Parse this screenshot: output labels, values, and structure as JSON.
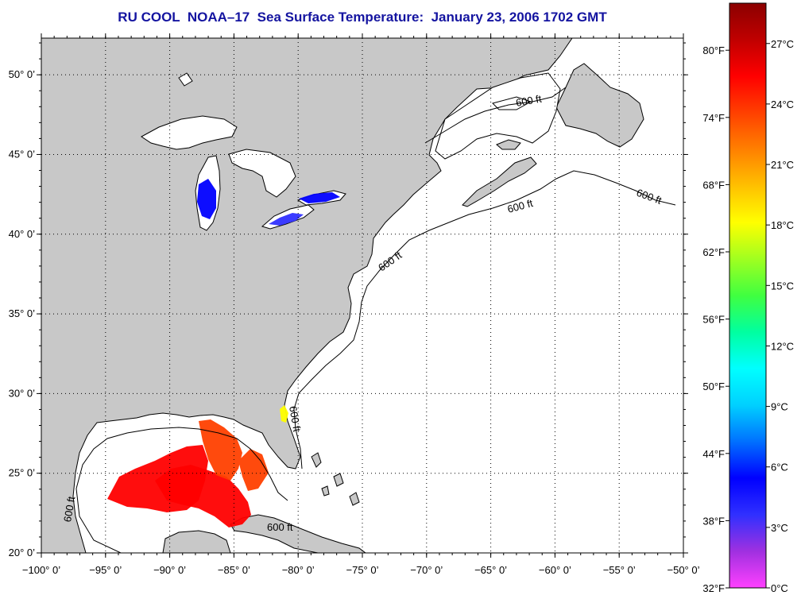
{
  "title": "RU COOL  NOAA–17  Sea Surface Temperature:  January 23, 2006 1702 GMT",
  "map": {
    "lon_range": [
      -100,
      -50
    ],
    "lat_range": [
      20,
      52.3
    ],
    "lon_ticks": [
      {
        "value": -100,
        "label": "−100° 0’"
      },
      {
        "value": -95,
        "label": "−95° 0’"
      },
      {
        "value": -90,
        "label": "−90° 0’"
      },
      {
        "value": -85,
        "label": "−85° 0’"
      },
      {
        "value": -80,
        "label": "−80° 0’"
      },
      {
        "value": -75,
        "label": "−75° 0’"
      },
      {
        "value": -70,
        "label": "−70° 0’"
      },
      {
        "value": -65,
        "label": "−65° 0’"
      },
      {
        "value": -60,
        "label": "−60° 0’"
      },
      {
        "value": -55,
        "label": "−55° 0’"
      },
      {
        "value": -50,
        "label": "−50° 0’"
      }
    ],
    "lat_ticks": [
      {
        "value": 20,
        "label": "20° 0’"
      },
      {
        "value": 25,
        "label": "25° 0’"
      },
      {
        "value": 30,
        "label": "30° 0’"
      },
      {
        "value": 35,
        "label": "35° 0’"
      },
      {
        "value": 40,
        "label": "40° 0’"
      },
      {
        "value": 45,
        "label": "45° 0’"
      },
      {
        "value": 50,
        "label": "50° 0’"
      }
    ],
    "grid": true,
    "contour_label": "600 ft",
    "land_color": "#c8c8c8",
    "water_color": "#ffffff"
  },
  "colorbar": {
    "range_c": [
      0,
      29
    ],
    "colors": [
      "#ff40ff",
      "#a030e0",
      "#3030ff",
      "#0000ff",
      "#0070ff",
      "#00d0ff",
      "#00ffff",
      "#00ffa0",
      "#40ff40",
      "#a0ff20",
      "#ffff00",
      "#ffc000",
      "#ff8000",
      "#ff4000",
      "#ff0000",
      "#c00000",
      "#8b0000"
    ],
    "celsius_ticks": [
      {
        "value": 0,
        "label": "0°C"
      },
      {
        "value": 3,
        "label": "3°C"
      },
      {
        "value": 6,
        "label": "6°C"
      },
      {
        "value": 9,
        "label": "9°C"
      },
      {
        "value": 12,
        "label": "12°C"
      },
      {
        "value": 15,
        "label": "15°C"
      },
      {
        "value": 18,
        "label": "18°C"
      },
      {
        "value": 21,
        "label": "21°C"
      },
      {
        "value": 24,
        "label": "24°C"
      },
      {
        "value": 27,
        "label": "27°C"
      }
    ],
    "fahrenheit_ticks": [
      {
        "value": 32,
        "label": "32°F"
      },
      {
        "value": 38,
        "label": "38°F"
      },
      {
        "value": 44,
        "label": "44°F"
      },
      {
        "value": 50,
        "label": "50°F"
      },
      {
        "value": 56,
        "label": "56°F"
      },
      {
        "value": 62,
        "label": "62°F"
      },
      {
        "value": 68,
        "label": "68°F"
      },
      {
        "value": 74,
        "label": "74°F"
      },
      {
        "value": 80,
        "label": "80°F"
      }
    ]
  },
  "sst_patches": [
    {
      "region": "gulf-of-mexico-west",
      "temp_c": 25
    },
    {
      "region": "gulf-of-mexico-central",
      "temp_c": 26
    },
    {
      "region": "gulf-of-mexico-east",
      "temp_c": 23
    },
    {
      "region": "florida-east-coast",
      "temp_c": 18
    },
    {
      "region": "lake-michigan",
      "temp_c": 5
    },
    {
      "region": "lake-erie",
      "temp_c": 3
    },
    {
      "region": "lake-ontario",
      "temp_c": 5
    }
  ]
}
